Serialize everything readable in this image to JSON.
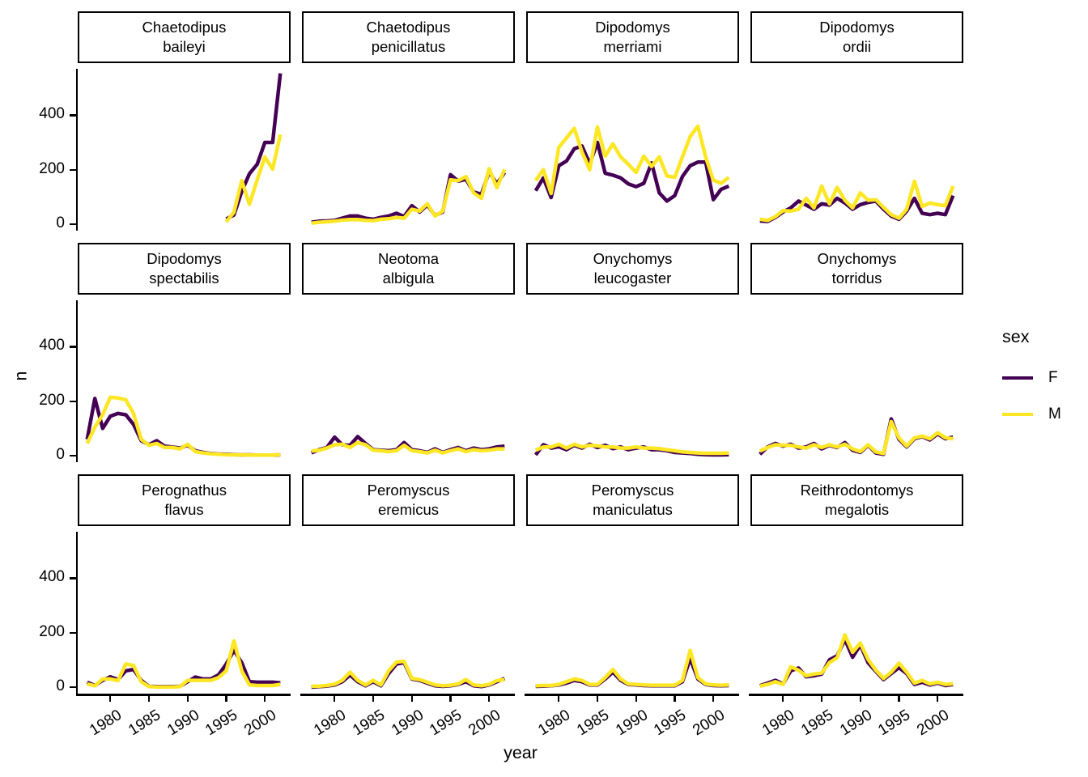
{
  "figure": {
    "background": "#FFFFFF",
    "text_color": "#000000"
  },
  "chart_data": {
    "type": "line",
    "title": "",
    "xlabel": "year",
    "ylabel": "n",
    "grid": false,
    "facet_layout": {
      "rows": 3,
      "cols": 4
    },
    "x": [
      1977,
      1978,
      1979,
      1980,
      1981,
      1982,
      1983,
      1984,
      1985,
      1986,
      1987,
      1988,
      1989,
      1990,
      1991,
      1992,
      1993,
      1994,
      1995,
      1996,
      1997,
      1998,
      1999,
      2000,
      2001,
      2002
    ],
    "x_ticks": [
      "1980",
      "1985",
      "1990",
      "1995",
      "2000"
    ],
    "x_tick_years": [
      1980,
      1985,
      1990,
      1995,
      2000
    ],
    "y_ticks": [
      "0",
      "200",
      "400"
    ],
    "y_tick_values": [
      0,
      200,
      400
    ],
    "ylim": [
      0,
      570
    ],
    "legend": {
      "title": "sex",
      "position": "right",
      "entries": [
        {
          "label": "F",
          "color": "#440154"
        },
        {
          "label": "M",
          "color": "#FDE725"
        }
      ]
    },
    "facets": [
      {
        "title": [
          "Chaetodipus",
          "baileyi"
        ],
        "series": [
          {
            "name": "F",
            "values": [
              null,
              null,
              null,
              null,
              null,
              null,
              null,
              null,
              null,
              null,
              null,
              null,
              null,
              null,
              null,
              null,
              null,
              null,
              19,
              34,
              120,
              185,
              220,
              300,
              300,
              554
            ]
          },
          {
            "name": "M",
            "values": [
              null,
              null,
              null,
              null,
              null,
              null,
              null,
              null,
              null,
              null,
              null,
              null,
              null,
              null,
              null,
              null,
              null,
              null,
              9,
              44,
              160,
              73,
              163,
              247,
              202,
              329
            ]
          }
        ]
      },
      {
        "title": [
          "Chaetodipus",
          "penicillatus"
        ],
        "series": [
          {
            "name": "F",
            "values": [
              7,
              11,
              12,
              14,
              22,
              30,
              30,
              22,
              18,
              25,
              30,
              40,
              28,
              68,
              45,
              70,
              32,
              45,
              182,
              158,
              165,
              118,
              110,
              193,
              148,
              190
            ]
          },
          {
            "name": "M",
            "values": [
              4,
              7,
              9,
              11,
              15,
              17,
              17,
              14,
              13,
              18,
              20,
              25,
              22,
              55,
              48,
              75,
              30,
              48,
              163,
              160,
              175,
              115,
              95,
              204,
              134,
              201
            ]
          }
        ]
      },
      {
        "title": [
          "Dipodomys",
          "merriami"
        ],
        "series": [
          {
            "name": "F",
            "values": [
              123,
              170,
              98,
              215,
              232,
              277,
              287,
              222,
              300,
              187,
              180,
              170,
              148,
              138,
              150,
              225,
              115,
              85,
              105,
              175,
              215,
              228,
              228,
              90,
              128,
              140
            ]
          },
          {
            "name": "M",
            "values": [
              160,
              200,
              113,
              282,
              317,
              352,
              265,
              200,
              357,
              250,
              295,
              247,
              220,
              190,
              250,
              212,
              247,
              177,
              172,
              247,
              322,
              360,
              247,
              162,
              150,
              172
            ]
          }
        ]
      },
      {
        "title": [
          "Dipodomys",
          "ordii"
        ],
        "series": [
          {
            "name": "F",
            "values": [
              12,
              10,
              25,
              45,
              60,
              85,
              70,
              55,
              75,
              70,
              95,
              78,
              55,
              72,
              80,
              85,
              55,
              30,
              18,
              48,
              95,
              40,
              35,
              40,
              35,
              105
            ]
          },
          {
            "name": "M",
            "values": [
              18,
              14,
              28,
              50,
              48,
              55,
              95,
              60,
              140,
              75,
              135,
              88,
              60,
              115,
              88,
              90,
              62,
              35,
              22,
              55,
              158,
              65,
              78,
              72,
              68,
              140
            ]
          }
        ]
      },
      {
        "title": [
          "Dipodomys",
          "spectabilis"
        ],
        "series": [
          {
            "name": "F",
            "values": [
              60,
              210,
              100,
              145,
              155,
              150,
              115,
              55,
              40,
              55,
              35,
              32,
              28,
              38,
              18,
              12,
              8,
              6,
              5,
              4,
              3,
              3,
              2,
              2,
              2,
              3
            ]
          },
          {
            "name": "M",
            "values": [
              45,
              105,
              150,
              215,
              212,
              205,
              155,
              60,
              38,
              45,
              30,
              30,
              25,
              42,
              15,
              10,
              7,
              5,
              4,
              3,
              3,
              2,
              2,
              2,
              2,
              4
            ]
          }
        ]
      },
      {
        "title": [
          "Neotoma",
          "albigula"
        ],
        "series": [
          {
            "name": "F",
            "values": [
              10,
              22,
              30,
              68,
              40,
              38,
              70,
              45,
              22,
              20,
              18,
              22,
              48,
              22,
              18,
              12,
              25,
              12,
              22,
              30,
              18,
              28,
              22,
              25,
              32,
              35
            ]
          },
          {
            "name": "M",
            "values": [
              17,
              20,
              28,
              40,
              42,
              30,
              48,
              40,
              20,
              18,
              15,
              18,
              38,
              18,
              15,
              10,
              20,
              10,
              18,
              25,
              15,
              22,
              18,
              20,
              25,
              25
            ]
          }
        ]
      },
      {
        "title": [
          "Onychomys",
          "leucogaster"
        ],
        "series": [
          {
            "name": "F",
            "values": [
              3,
              40,
              28,
              33,
              22,
              38,
              28,
              42,
              30,
              38,
              26,
              32,
              22,
              28,
              32,
              22,
              22,
              18,
              12,
              10,
              8,
              5,
              4,
              3,
              3,
              4
            ]
          },
          {
            "name": "M",
            "values": [
              20,
              32,
              32,
              42,
              28,
              42,
              32,
              38,
              36,
              32,
              32,
              28,
              28,
              32,
              28,
              28,
              26,
              22,
              18,
              14,
              12,
              10,
              9,
              9,
              9,
              10
            ]
          }
        ]
      },
      {
        "title": [
          "Onychomys",
          "torridus"
        ],
        "series": [
          {
            "name": "F",
            "values": [
              5,
              32,
              45,
              35,
              42,
              28,
              32,
              45,
              25,
              38,
              30,
              48,
              20,
              12,
              38,
              10,
              5,
              135,
              60,
              32,
              62,
              70,
              58,
              80,
              62,
              68
            ]
          },
          {
            "name": "M",
            "values": [
              17,
              30,
              40,
              38,
              38,
              32,
              28,
              40,
              30,
              40,
              32,
              42,
              25,
              15,
              40,
              14,
              8,
              125,
              65,
              35,
              65,
              72,
              62,
              84,
              66,
              62
            ]
          }
        ]
      },
      {
        "title": [
          "Perognathus",
          "flavus"
        ],
        "series": [
          {
            "name": "F",
            "values": [
              18,
              6,
              25,
              38,
              28,
              60,
              65,
              25,
              3,
              2,
              2,
              2,
              3,
              20,
              37,
              30,
              30,
              45,
              85,
              135,
              90,
              20,
              18,
              18,
              18,
              16
            ]
          },
          {
            "name": "M",
            "values": [
              12,
              5,
              30,
              30,
              24,
              85,
              80,
              20,
              2,
              1,
              1,
              1,
              2,
              25,
              25,
              25,
              25,
              35,
              60,
              170,
              60,
              8,
              6,
              6,
              6,
              10
            ]
          }
        ]
      },
      {
        "title": [
          "Peromyscus",
          "eremicus"
        ],
        "series": [
          {
            "name": "F",
            "values": [
              0,
              2,
              4,
              8,
              20,
              45,
              20,
              5,
              20,
              5,
              50,
              85,
              90,
              30,
              25,
              15,
              5,
              3,
              5,
              10,
              20,
              5,
              2,
              8,
              20,
              32
            ]
          },
          {
            "name": "M",
            "values": [
              3,
              4,
              6,
              11,
              25,
              55,
              25,
              8,
              25,
              8,
              60,
              92,
              95,
              32,
              28,
              18,
              8,
              5,
              7,
              12,
              28,
              8,
              5,
              10,
              24,
              28
            ]
          }
        ]
      },
      {
        "title": [
          "Peromyscus",
          "maniculatus"
        ],
        "series": [
          {
            "name": "F",
            "values": [
              3,
              4,
              5,
              8,
              15,
              25,
              20,
              8,
              8,
              30,
              55,
              25,
              10,
              8,
              6,
              5,
              5,
              5,
              5,
              20,
              105,
              30,
              10,
              6,
              5,
              6
            ]
          },
          {
            "name": "M",
            "values": [
              5,
              6,
              6,
              10,
              20,
              30,
              25,
              10,
              10,
              35,
              65,
              30,
              12,
              10,
              8,
              7,
              7,
              7,
              7,
              25,
              135,
              35,
              12,
              8,
              7,
              8
            ]
          }
        ]
      },
      {
        "title": [
          "Reithrodontomys",
          "megalotis"
        ],
        "series": [
          {
            "name": "F",
            "values": [
              5,
              15,
              25,
              12,
              60,
              70,
              38,
              42,
              48,
              100,
              115,
              175,
              110,
              155,
              90,
              58,
              28,
              50,
              72,
              50,
              10,
              18,
              8,
              15,
              6,
              10
            ]
          },
          {
            "name": "M",
            "values": [
              4,
              10,
              20,
              10,
              75,
              62,
              42,
              48,
              52,
              90,
              108,
              192,
              128,
              162,
              102,
              62,
              32,
              55,
              88,
              55,
              15,
              25,
              12,
              18,
              10,
              13
            ]
          }
        ]
      }
    ]
  }
}
